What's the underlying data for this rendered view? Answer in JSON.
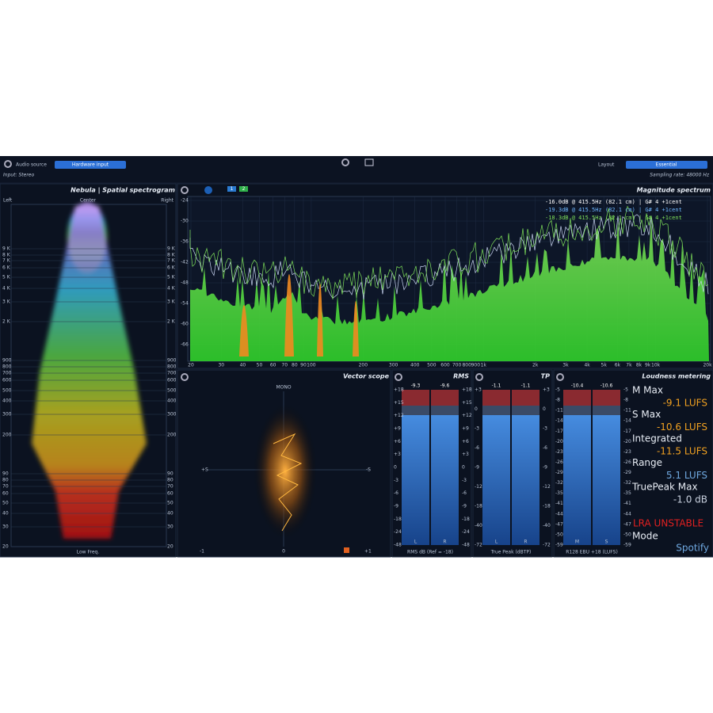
{
  "header": {
    "audio_source_label": "Audio source",
    "audio_source_button": "Hardware input",
    "input": "Input: Stereo",
    "layout_label": "Layout",
    "layout_button": "Essential",
    "sampling_rate": "Sampling rate: 48000 Hz"
  },
  "nebula": {
    "title": "Nebula | Spatial spectrogram",
    "left": "Left",
    "center": "Center",
    "right": "Right",
    "footer": "Low Freq.",
    "freq_labels": [
      "9 K",
      "8 K",
      "7 K",
      "6 K",
      "5 K",
      "4 K",
      "3 K",
      "2 K",
      "900",
      "800",
      "700",
      "600",
      "500",
      "400",
      "300",
      "200",
      "90",
      "80",
      "70",
      "60",
      "50",
      "40",
      "30",
      "20"
    ]
  },
  "spectrum": {
    "title": "Magnitude spectrum",
    "buttons": [
      "1",
      "2"
    ],
    "y_labels": [
      "-24",
      "-30",
      "-36",
      "-42",
      "-48",
      "-54",
      "-60",
      "-66"
    ],
    "x_labels": [
      "20",
      "30",
      "40",
      "50",
      "60",
      "70",
      "80",
      "90",
      "100",
      "200",
      "300",
      "400",
      "500",
      "600",
      "700",
      "800",
      "900",
      "1k",
      "2k",
      "3k",
      "4k",
      "5k",
      "6k",
      "7k",
      "8k",
      "9k",
      "10k",
      "20k"
    ],
    "readouts": [
      {
        "text": "-16.0dB @  415.5Hz (82.1 cm) | G# 4  +1cent",
        "color": "#ffffff"
      },
      {
        "text": "-19.3dB @  415.5Hz (82.1 cm) | G# 4  +1cent",
        "color": "#6fb7ff"
      },
      {
        "text": "-18.3dB @  415.5Hz (82.1 cm) | G# 4  +1cent",
        "color": "#7ee05a"
      }
    ]
  },
  "vectorscope": {
    "title": "Vector scope",
    "mono": "MONO",
    "plus_s": "+S",
    "minus_s": "-S",
    "minus_one": "-1",
    "zero": "0",
    "plus_one": "+1"
  },
  "rms": {
    "title": "RMS",
    "peaks": [
      "-9.3",
      "-9.6"
    ],
    "channels": [
      "L",
      "R"
    ],
    "footer": "RMS dB (Ref = -18)",
    "scale": [
      "+18",
      "+15",
      "+12",
      "+9",
      "+6",
      "+3",
      "0",
      "-3",
      "-6",
      "-9",
      "-18",
      "-24",
      "-48"
    ]
  },
  "tp": {
    "title": "TP",
    "peaks": [
      "-1.1",
      "-1.1"
    ],
    "channels": [
      "L",
      "R"
    ],
    "footer": "True Peak (dBTP)",
    "scale": [
      "+3",
      "0",
      "-3",
      "-6",
      "-9",
      "-12",
      "-18",
      "-40",
      "-72"
    ]
  },
  "loudness": {
    "title": "Loudness metering",
    "peaks": [
      "-10.4",
      "-10.6"
    ],
    "channels": [
      "M",
      "S"
    ],
    "footer": "R128 EBU +18 (LUFS)",
    "scale": [
      "-5",
      "-8",
      "-11",
      "-14",
      "-17",
      "-20",
      "-23",
      "-26",
      "-29",
      "-32",
      "-35",
      "-41",
      "-44",
      "-47",
      "-50",
      "-59"
    ],
    "stats": [
      {
        "label": "M Max",
        "value": "-9.1 LUFS"
      },
      {
        "label": "S Max",
        "value": "-10.6 LUFS"
      },
      {
        "label": "Integrated",
        "value": "-11.5 LUFS"
      },
      {
        "label": "Range",
        "value": "5.1 LUFS"
      },
      {
        "label": "TruePeak Max",
        "value": "-1.0 dB"
      }
    ],
    "warning": "LRA UNSTABLE",
    "mode_label": "Mode",
    "mode_value": "Spotify"
  }
}
